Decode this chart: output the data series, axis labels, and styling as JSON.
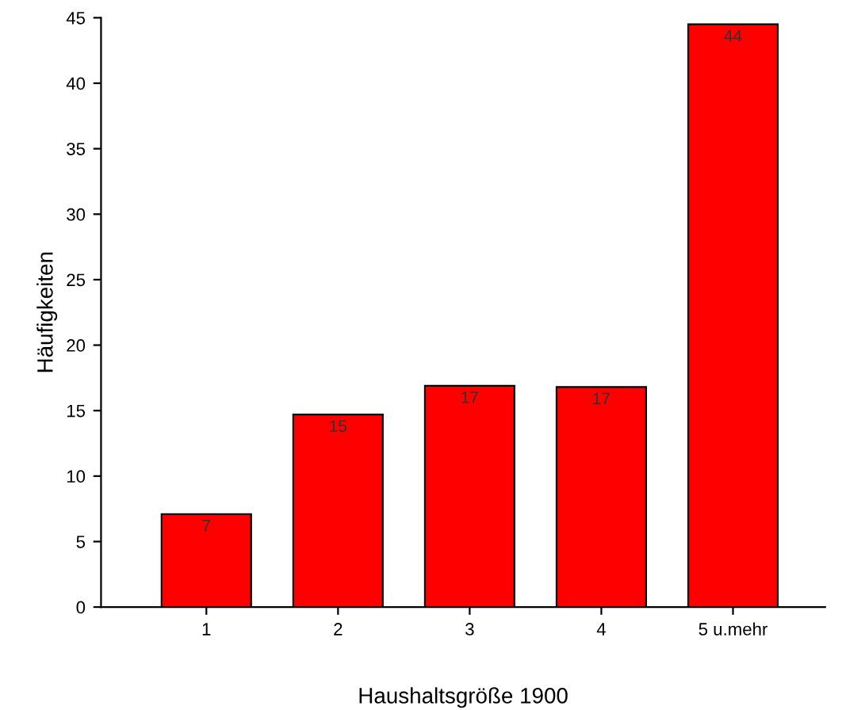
{
  "chart_data": {
    "type": "bar",
    "xlabel": "Haushaltsgröße 1900",
    "ylabel": "Häufigkeiten",
    "categories": [
      "1",
      "2",
      "3",
      "4",
      "5 u.mehr"
    ],
    "values": [
      7.1,
      14.7,
      16.9,
      16.8,
      44.5
    ],
    "value_labels": [
      "7",
      "15",
      "17",
      "17",
      "44"
    ],
    "color": "#ff0000",
    "ylim": [
      0,
      45
    ],
    "yticks": [
      0,
      5,
      10,
      15,
      20,
      25,
      30,
      35,
      40,
      45
    ],
    "grid": false
  }
}
